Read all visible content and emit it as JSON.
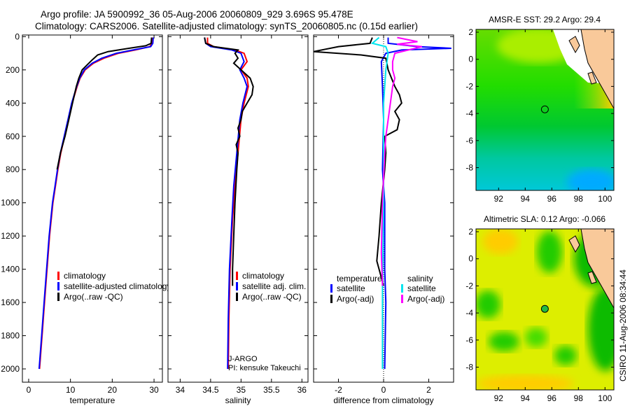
{
  "title": {
    "line1": "Argo profile: JA 5900992_36 05-Aug-2006 20060809_929 3.696S 95.478E",
    "line2": "Climatology: CARS2006. Satellite-adjusted climatology: synTS_20060805.nc (0.15d earlier)"
  },
  "credit": "CSIRO 11-Aug-2006 08:34:44",
  "chart_data": [
    {
      "type": "line",
      "id": "temperature",
      "xlabel": "temperature",
      "ylabel": "",
      "xlim": [
        -1.5,
        32
      ],
      "ylim": [
        2080,
        -10
      ],
      "xticks": [
        0,
        10,
        20,
        30
      ],
      "yticks": [
        0,
        200,
        400,
        600,
        800,
        1000,
        1200,
        1400,
        1600,
        1800,
        2000
      ],
      "legend": [
        "climatology",
        "satellite-adjusted climatology",
        "Argo(..raw -QC)"
      ],
      "legend_position": "lower-right",
      "series": [
        {
          "name": "climatology",
          "color": "#ff0000",
          "points": [
            [
              5,
              29.6
            ],
            [
              40,
              29.5
            ],
            [
              60,
              29.0
            ],
            [
              80,
              25.5
            ],
            [
              100,
              21.5
            ],
            [
              130,
              18
            ],
            [
              160,
              15.5
            ],
            [
              200,
              13.5
            ],
            [
              250,
              12.3
            ],
            [
              300,
              11.6
            ],
            [
              400,
              10.4
            ],
            [
              500,
              9.5
            ],
            [
              600,
              8.6
            ],
            [
              700,
              7.7
            ],
            [
              800,
              7.0
            ],
            [
              900,
              6.4
            ],
            [
              1000,
              5.8
            ],
            [
              1200,
              5.0
            ],
            [
              1400,
              4.4
            ],
            [
              1600,
              3.8
            ],
            [
              1800,
              3.2
            ],
            [
              2000,
              2.6
            ]
          ]
        },
        {
          "name": "satellite-adjusted climatology",
          "color": "#0000ff",
          "points": [
            [
              5,
              29.8
            ],
            [
              40,
              29.7
            ],
            [
              60,
              29.2
            ],
            [
              80,
              25
            ],
            [
              100,
              21
            ],
            [
              130,
              17.5
            ],
            [
              160,
              15.2
            ],
            [
              200,
              13.3
            ],
            [
              250,
              12.2
            ],
            [
              300,
              11.5
            ],
            [
              400,
              10.3
            ],
            [
              500,
              9.4
            ],
            [
              600,
              8.5
            ],
            [
              700,
              7.6
            ],
            [
              800,
              6.9
            ],
            [
              900,
              6.3
            ],
            [
              1000,
              5.7
            ],
            [
              1200,
              4.9
            ],
            [
              1400,
              4.3
            ],
            [
              1600,
              3.7
            ],
            [
              1800,
              3.1
            ],
            [
              2000,
              2.5
            ]
          ]
        },
        {
          "name": "Argo(..raw -QC)",
          "color": "#000000",
          "points": [
            [
              5,
              29.4
            ],
            [
              40,
              29.3
            ],
            [
              55,
              28
            ],
            [
              70,
              24
            ],
            [
              90,
              19
            ],
            [
              110,
              16.5
            ],
            [
              140,
              15.2
            ],
            [
              170,
              14
            ],
            [
              200,
              12.8
            ],
            [
              250,
              12.0
            ],
            [
              300,
              11.4
            ],
            [
              400,
              10.5
            ],
            [
              500,
              9.6
            ],
            [
              600,
              8.7
            ],
            [
              700,
              7.6
            ],
            [
              800,
              6.8
            ]
          ]
        }
      ]
    },
    {
      "type": "line",
      "id": "salinity",
      "xlabel": "salinity",
      "xlim": [
        33.8,
        36.1
      ],
      "ylim": [
        2080,
        -10
      ],
      "xticks": [
        34,
        34.5,
        35,
        35.5,
        36
      ],
      "legend": [
        "climatology",
        "satellite adj. clim.",
        "Argo(..raw -QC)"
      ],
      "legend_position": "lower-right",
      "annotation": [
        "J-ARGO",
        "PI: kensuke Takeuchi"
      ],
      "series": [
        {
          "name": "climatology",
          "color": "#ff0000",
          "points": [
            [
              5,
              34.45
            ],
            [
              40,
              34.45
            ],
            [
              60,
              34.55
            ],
            [
              80,
              34.9
            ],
            [
              100,
              35.05
            ],
            [
              150,
              35.1
            ],
            [
              200,
              35.0
            ],
            [
              250,
              35.1
            ],
            [
              300,
              35.12
            ],
            [
              400,
              35.05
            ],
            [
              500,
              35.0
            ],
            [
              700,
              34.95
            ],
            [
              900,
              34.9
            ],
            [
              1100,
              34.86
            ],
            [
              1400,
              34.82
            ],
            [
              1700,
              34.8
            ],
            [
              2000,
              34.79
            ]
          ]
        },
        {
          "name": "satellite adj. clim.",
          "color": "#0000ff",
          "points": [
            [
              5,
              34.4
            ],
            [
              40,
              34.42
            ],
            [
              60,
              34.5
            ],
            [
              80,
              34.85
            ],
            [
              100,
              35.0
            ],
            [
              150,
              35.05
            ],
            [
              200,
              34.98
            ],
            [
              250,
              35.05
            ],
            [
              300,
              35.1
            ],
            [
              400,
              35.03
            ],
            [
              500,
              34.98
            ],
            [
              700,
              34.93
            ],
            [
              900,
              34.88
            ],
            [
              1100,
              34.85
            ],
            [
              1400,
              34.81
            ],
            [
              1700,
              34.79
            ],
            [
              2000,
              34.78
            ]
          ]
        },
        {
          "name": "Argo(..raw -QC)",
          "color": "#000000",
          "points": [
            [
              5,
              34.4
            ],
            [
              40,
              34.42
            ],
            [
              60,
              34.55
            ],
            [
              80,
              34.95
            ],
            [
              100,
              34.9
            ],
            [
              130,
              34.95
            ],
            [
              160,
              34.88
            ],
            [
              200,
              35.0
            ],
            [
              250,
              35.15
            ],
            [
              300,
              35.2
            ],
            [
              350,
              35.18
            ],
            [
              400,
              35.1
            ],
            [
              450,
              35.02
            ],
            [
              500,
              35.0
            ],
            [
              550,
              34.95
            ],
            [
              600,
              34.98
            ],
            [
              650,
              34.92
            ],
            [
              700,
              34.95
            ],
            [
              800,
              34.93
            ],
            [
              1000,
              34.9
            ],
            [
              1200,
              34.88
            ],
            [
              1400,
              34.86
            ],
            [
              1500,
              34.86
            ]
          ]
        }
      ]
    },
    {
      "type": "line",
      "id": "difference",
      "xlabel": "difference from climatology",
      "xlim": [
        -3.1,
        3.1
      ],
      "ylim": [
        2080,
        -10
      ],
      "xticks": [
        -2,
        0,
        2
      ],
      "legend_headers": [
        "temperature",
        "salinity"
      ],
      "legend": [
        "satellite",
        "Argo(-adj)",
        "satellite",
        "Argo(-adj)"
      ],
      "legend_position": "lower-center",
      "series": [
        {
          "name": "temperature satellite",
          "color": "#0000ff",
          "points": [
            [
              5,
              0.2
            ],
            [
              40,
              0.2
            ],
            [
              60,
              1.5
            ],
            [
              70,
              3.0
            ],
            [
              80,
              0.8
            ],
            [
              100,
              0.1
            ],
            [
              150,
              -0.1
            ],
            [
              300,
              -0.05
            ],
            [
              500,
              0
            ],
            [
              800,
              -0.05
            ],
            [
              1000,
              0.05
            ],
            [
              1400,
              0.05
            ],
            [
              1600,
              0.1
            ],
            [
              2000,
              0.05
            ]
          ]
        },
        {
          "name": "temperature Argo(-adj)",
          "color": "#000000",
          "points": [
            [
              5,
              -0.5
            ],
            [
              40,
              -0.6
            ],
            [
              60,
              -2
            ],
            [
              90,
              -3.1
            ],
            [
              110,
              -1
            ],
            [
              130,
              0.1
            ],
            [
              200,
              0.2
            ],
            [
              300,
              0.5
            ],
            [
              350,
              0.7
            ],
            [
              400,
              0.8
            ],
            [
              450,
              0.5
            ],
            [
              500,
              0.7
            ],
            [
              560,
              0.6
            ],
            [
              600,
              0.05
            ],
            [
              700,
              0.1
            ],
            [
              800,
              0.05
            ],
            [
              1000,
              -0.1
            ],
            [
              1200,
              -0.2
            ],
            [
              1350,
              -0.3
            ],
            [
              1450,
              -0.1
            ],
            [
              1500,
              0
            ]
          ]
        },
        {
          "name": "salinity satellite",
          "color": "#00e5ee",
          "points": [
            [
              5,
              -0.2
            ],
            [
              40,
              -0.5
            ],
            [
              60,
              0.1
            ],
            [
              100,
              0.2
            ],
            [
              200,
              0.1
            ],
            [
              400,
              0
            ],
            [
              600,
              0
            ],
            [
              1000,
              0
            ],
            [
              1500,
              -0.05
            ],
            [
              2000,
              -0.05
            ]
          ]
        },
        {
          "name": "salinity Argo(-adj)",
          "color": "#ff00ff",
          "points": [
            [
              5,
              0.6
            ],
            [
              30,
              1.5
            ],
            [
              45,
              0.6
            ],
            [
              60,
              1.7
            ],
            [
              100,
              0.5
            ],
            [
              150,
              0.4
            ],
            [
              200,
              0.4
            ],
            [
              250,
              0.5
            ],
            [
              300,
              0.4
            ],
            [
              400,
              0.3
            ],
            [
              500,
              0.2
            ],
            [
              600,
              0.1
            ],
            [
              700,
              0.05
            ],
            [
              1000,
              -0.05
            ],
            [
              1300,
              -0.1
            ],
            [
              1500,
              -0.05
            ]
          ]
        }
      ]
    }
  ],
  "maps": [
    {
      "title": "AMSR-E SST: 29.2 Argo: 29.4",
      "xticks": [
        "92",
        "94",
        "96",
        "98",
        "100"
      ],
      "yticks": [
        "2",
        "0",
        "-2",
        "-4",
        "-6",
        "-8"
      ],
      "marker": {
        "lon": 95.478,
        "lat": -3.696
      }
    },
    {
      "title": "Altimetric SLA: 0.12 Argo: -0.066",
      "xticks": [
        "92",
        "94",
        "96",
        "98",
        "100"
      ],
      "yticks": [
        "2",
        "0",
        "-2",
        "-4",
        "-6",
        "-8"
      ],
      "marker": {
        "lon": 95.478,
        "lat": -3.696
      }
    }
  ]
}
